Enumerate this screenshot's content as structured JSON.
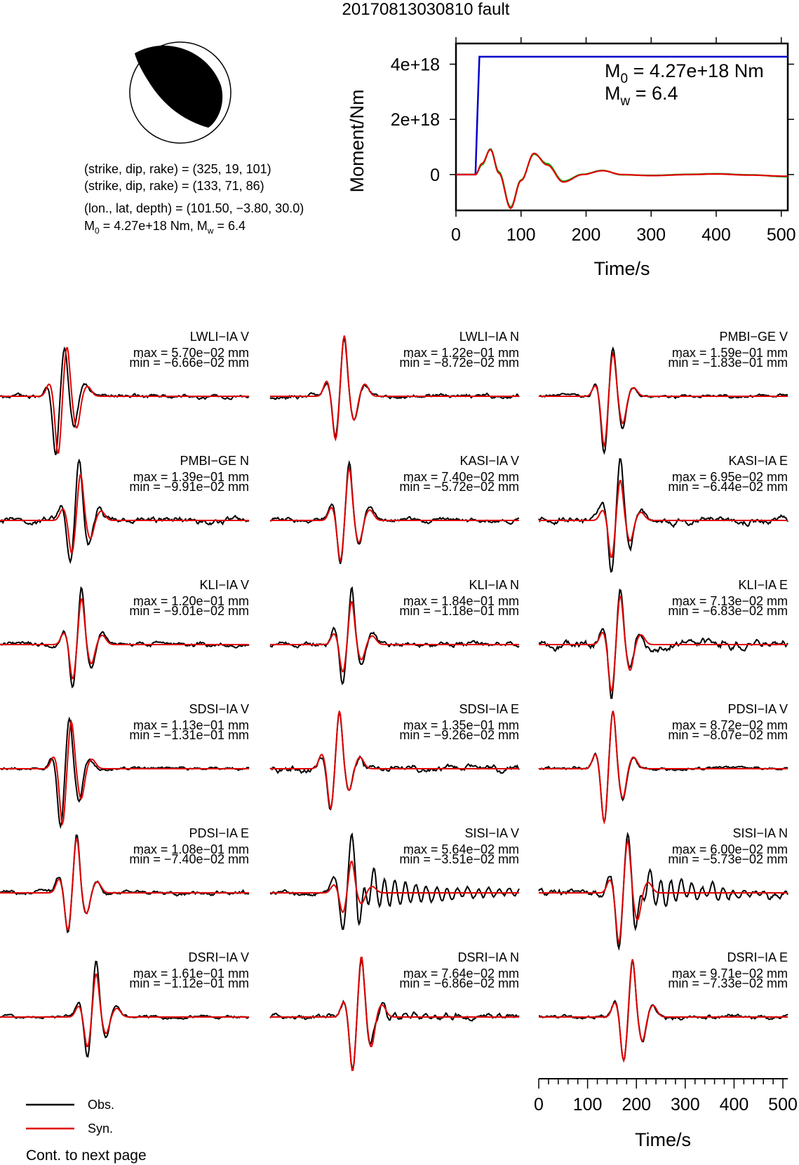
{
  "page": {
    "title": "20170813030810 fault",
    "continue_note": "Cont. to next page"
  },
  "mechanism": {
    "plane1": "(strike, dip, rake) = (325, 19, 101)",
    "plane2": "(strike, dip, rake) = (133, 71, 86)",
    "location": "(lon., lat, depth) = (101.50, −3.80, 30.0)",
    "moment_prefix": "M",
    "moment_sub": "0",
    "moment_rest": " = 4.27e+18 Nm, M",
    "mw_sub": "w",
    "mw_rest": " = 6.4",
    "strike": 325,
    "dip": 19,
    "rake": 101
  },
  "legend": {
    "obs": {
      "label": "Obs.",
      "color": "#000000"
    },
    "syn": {
      "label": "Syn.",
      "color": "#e00000"
    }
  },
  "moment_box": {
    "m0_main": "M",
    "m0_sub": "0",
    "m0_rest": " = 4.27e+18 Nm",
    "mw_main": "M",
    "mw_sub": "w",
    "mw_rest": " = 6.4"
  },
  "chart_data": [
    {
      "type": "line",
      "id": "moment-rate",
      "xlabel": "Time/s",
      "ylabel": "Moment/Nm",
      "xlim": [
        0,
        510
      ],
      "ylim": [
        -1.3e+18,
        4.75e+18
      ],
      "xticks": [
        0,
        100,
        200,
        300,
        400,
        500
      ],
      "yticks": [
        0,
        2e+18,
        4e+18
      ],
      "ytick_labels": [
        "0",
        "2e+18",
        "4e+18"
      ],
      "series": [
        {
          "color": "#0000cc",
          "x": [
            0,
            30,
            33,
            36,
            510
          ],
          "y": [
            0,
            0,
            2.2e+18,
            4.27e+18,
            4.27e+18
          ]
        },
        {
          "color": "#00bb00",
          "x": [
            0,
            30,
            40,
            53,
            66,
            84,
            100,
            120,
            140,
            165,
            195,
            225,
            255,
            300,
            360,
            400,
            450,
            510
          ],
          "y": [
            0,
            0,
            3.5e+17,
            9.3e+17,
            1e+17,
            -1.18e+18,
            -2e+17,
            7.4e+17,
            4e+17,
            -2.4e+17,
            1e+16,
            1.5e+17,
            -1e+16,
            -3e+16,
            1e+16,
            3e+16,
            -1e+16,
            -8e+16
          ]
        },
        {
          "color": "#e00000",
          "x": [
            0,
            30,
            40,
            53,
            66,
            84,
            100,
            120,
            140,
            165,
            195,
            225,
            255,
            300,
            360,
            400,
            450,
            510
          ],
          "y": [
            0,
            0,
            4e+17,
            9.1e+17,
            5e+16,
            -1.22e+18,
            -2.2e+17,
            7.7e+17,
            3.5e+17,
            -2.7e+17,
            0,
            1.4e+17,
            0,
            -4e+16,
            0,
            2e+16,
            -2e+16,
            -6e+16
          ]
        }
      ]
    },
    {
      "type": "line",
      "id": "waveforms",
      "xlabel": "Time/s",
      "xlim": [
        0,
        510
      ],
      "xticks": [
        0,
        100,
        200,
        300,
        400,
        500
      ],
      "stations": [
        {
          "name": "LWLI−IA V",
          "max": "max = 5.70e−02 mm",
          "min": "min = −6.66e−02 mm",
          "A": 0.057,
          "B": 0.0666,
          "c": 130,
          "sr": 1.0,
          "off": 5,
          "noise": 0.04,
          "ring": 0
        },
        {
          "name": "LWLI−IA N",
          "max": "max = 1.22e−01 mm",
          "min": "min = −8.72e−02 mm",
          "A": 0.122,
          "B": 0.0872,
          "c": 150,
          "sr": 1.05,
          "off": 0,
          "noise": 0.04,
          "ring": 0
        },
        {
          "name": "PMBI−GE V",
          "max": "max = 1.59e−01 mm",
          "min": "min = −1.83e−01 mm",
          "A": 0.159,
          "B": 0.183,
          "c": 150,
          "sr": 0.85,
          "off": 0,
          "noise": 0.03,
          "ring": 0
        },
        {
          "name": "PMBI−GE N",
          "max": "max = 1.39e−01 mm",
          "min": "min = −9.91e−02 mm",
          "A": 0.139,
          "B": 0.0991,
          "c": 160,
          "sr": 0.8,
          "off": 3,
          "noise": 0.06,
          "ring": 0
        },
        {
          "name": "KASI−IA V",
          "max": "max = 7.40e−02 mm",
          "min": "min = −5.72e−02 mm",
          "A": 0.074,
          "B": 0.0572,
          "c": 160,
          "sr": 0.9,
          "off": 0,
          "noise": 0.04,
          "ring": 0
        },
        {
          "name": "KASI−IA E",
          "max": "max = 6.95e−02 mm",
          "min": "min = −6.44e−02 mm",
          "A": 0.0695,
          "B": 0.0644,
          "c": 165,
          "sr": 0.7,
          "off": 0,
          "noise": 0.06,
          "ring": 0
        },
        {
          "name": "KLI−IA V",
          "max": "max = 1.20e−01 mm",
          "min": "min = −9.01e−02 mm",
          "A": 0.12,
          "B": 0.0901,
          "c": 165,
          "sr": 0.8,
          "off": 0,
          "noise": 0.04,
          "ring": 0
        },
        {
          "name": "KLI−IA N",
          "max": "max = 1.84e−01 mm",
          "min": "min = −1.18e−01 mm",
          "A": 0.184,
          "B": 0.118,
          "c": 165,
          "sr": 0.75,
          "off": 0,
          "noise": 0.05,
          "ring": 0
        },
        {
          "name": "KLI−IA E",
          "max": "max = 7.13e−02 mm",
          "min": "min = −6.83e−02 mm",
          "A": 0.0713,
          "B": 0.0683,
          "c": 165,
          "sr": 0.85,
          "off": 0,
          "noise": 0.08,
          "ring": 0
        },
        {
          "name": "SDSI−IA V",
          "max": "max = 1.13e−01 mm",
          "min": "min = −1.31e−01 mm",
          "A": 0.113,
          "B": 0.131,
          "c": 140,
          "sr": 0.95,
          "off": 4,
          "noise": 0.03,
          "ring": 0
        },
        {
          "name": "SDSI−IA E",
          "max": "max = 1.35e−01 mm",
          "min": "min = −9.26e−02 mm",
          "A": 0.135,
          "B": 0.0926,
          "c": 140,
          "sr": 1.0,
          "off": 0,
          "noise": 0.06,
          "ring": 0
        },
        {
          "name": "PDSI−IA V",
          "max": "max = 8.72e−02 mm",
          "min": "min = −8.07e−02 mm",
          "A": 0.0872,
          "B": 0.0807,
          "c": 150,
          "sr": 1.0,
          "off": 0,
          "noise": 0.03,
          "ring": 0
        },
        {
          "name": "PDSI−IA E",
          "max": "max = 1.08e−01 mm",
          "min": "min = −7.40e−02 mm",
          "A": 0.108,
          "B": 0.074,
          "c": 155,
          "sr": 0.95,
          "off": 0,
          "noise": 0.04,
          "ring": 0
        },
        {
          "name": "SISI−IA V",
          "max": "max = 5.64e−02 mm",
          "min": "min = −3.51e−02 mm",
          "A": 0.0564,
          "B": 0.0351,
          "c": 165,
          "sr": 0.55,
          "off": 0,
          "noise": 0.04,
          "ring": 0.35
        },
        {
          "name": "SISI−IA N",
          "max": "max = 6.00e−02 mm",
          "min": "min = −5.73e−02 mm",
          "A": 0.06,
          "B": 0.0573,
          "c": 180,
          "sr": 0.9,
          "off": 0,
          "noise": 0.06,
          "ring": 0.3
        },
        {
          "name": "DSRI−IA V",
          "max": "max = 1.61e−01 mm",
          "min": "min = −1.12e−01 mm",
          "A": 0.161,
          "B": 0.112,
          "c": 195,
          "sr": 0.75,
          "off": 0,
          "noise": 0.03,
          "ring": 0
        },
        {
          "name": "DSRI−IA N",
          "max": "max = 7.64e−02 mm",
          "min": "min = −6.86e−02 mm",
          "A": 0.0764,
          "B": 0.0686,
          "c": 185,
          "sr": 1.05,
          "off": 0,
          "noise": 0.05,
          "ring": 0.1
        },
        {
          "name": "DSRI−IA E",
          "max": "max = 9.71e−02 mm",
          "min": "min = −7.33e−02 mm",
          "A": 0.0971,
          "B": 0.0733,
          "c": 190,
          "sr": 1.0,
          "off": 0,
          "noise": 0.04,
          "ring": 0
        }
      ]
    }
  ]
}
